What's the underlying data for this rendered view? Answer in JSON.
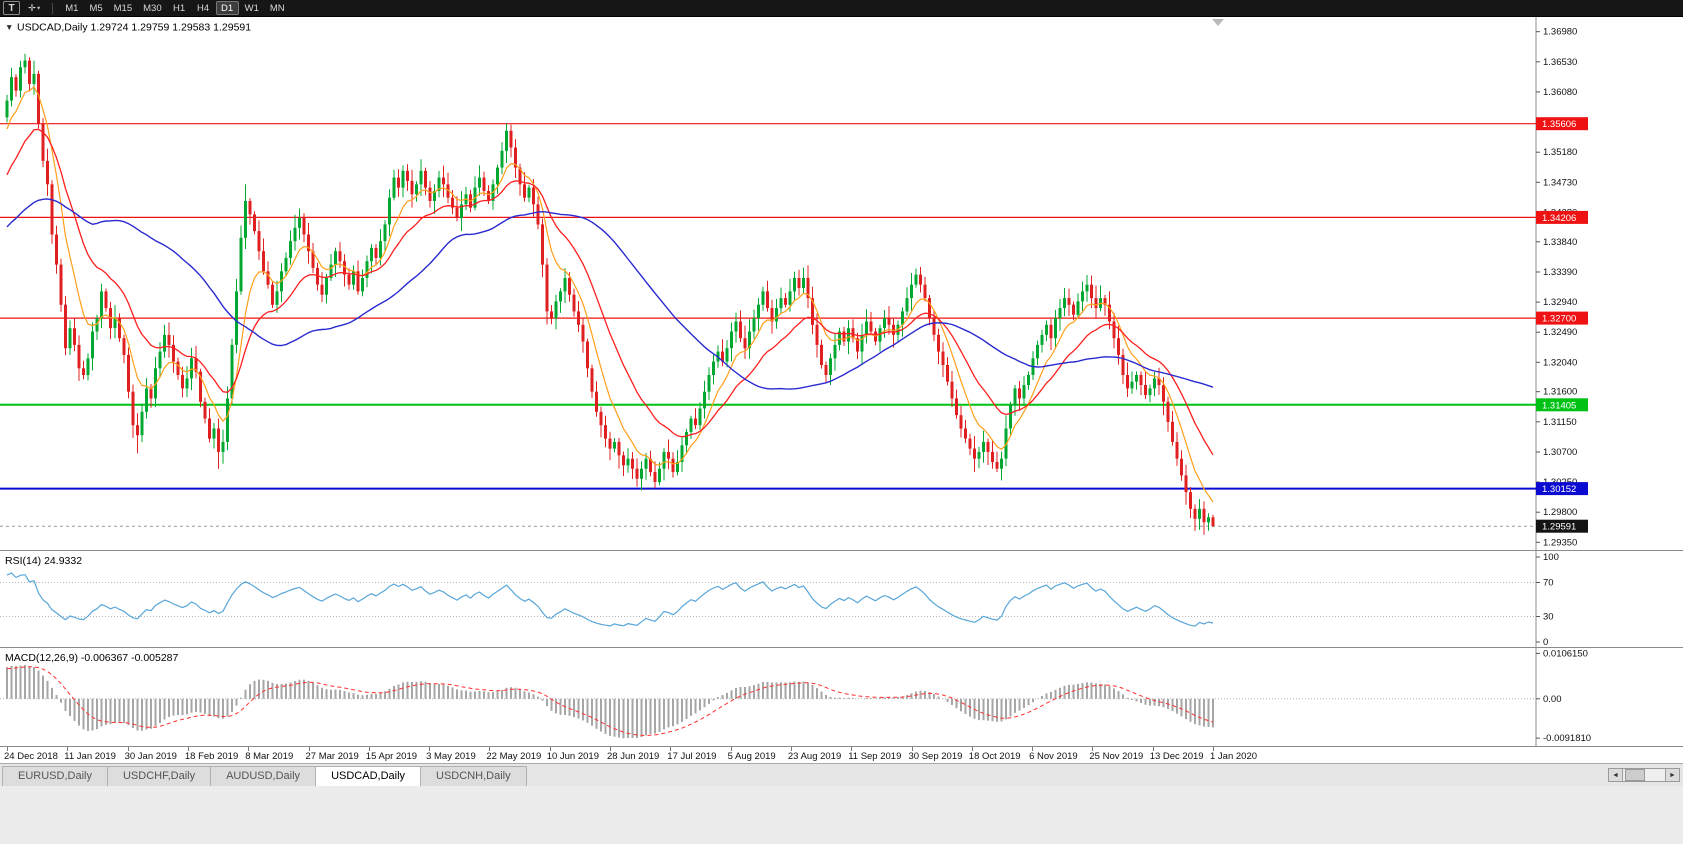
{
  "toolbar": {
    "text_tool_label": "T",
    "crosshair_icon": "✛",
    "dropdown_icon": "▾",
    "timeframes": [
      "M1",
      "M5",
      "M15",
      "M30",
      "H1",
      "H4",
      "D1",
      "W1",
      "MN"
    ],
    "active_timeframe": "D1"
  },
  "main_chart": {
    "collapse_icon": "▼",
    "label": "USDCAD,Daily 1.29724 1.29759 1.29583 1.29591"
  },
  "chart_data": {
    "type": "candlestick",
    "symbol": "USDCAD",
    "timeframe": "Daily",
    "ohlc_display": {
      "open": "1.29724",
      "high": "1.29759",
      "low": "1.29583",
      "close": "1.29591"
    },
    "price_axis": {
      "range": [
        1.2922,
        1.372
      ],
      "ticks": [
        "1.36980",
        "1.36530",
        "1.36080",
        "1.35630",
        "1.35180",
        "1.34730",
        "1.34280",
        "1.33840",
        "1.33390",
        "1.32940",
        "1.32490",
        "1.32040",
        "1.31600",
        "1.31150",
        "1.30700",
        "1.30250",
        "1.29800",
        "1.29350"
      ]
    },
    "date_labels": [
      "24 Dec 2018",
      "11 Jan 2019",
      "30 Jan 2019",
      "18 Feb 2019",
      "8 Mar 2019",
      "27 Mar 2019",
      "15 Apr 2019",
      "3 May 2019",
      "22 May 2019",
      "10 Jun 2019",
      "28 Jun 2019",
      "17 Jul 2019",
      "5 Aug 2019",
      "23 Aug 2019",
      "11 Sep 2019",
      "30 Sep 2019",
      "18 Oct 2019",
      "6 Nov 2019",
      "25 Nov 2019",
      "13 Dec 2019",
      "1 Jan 2020"
    ],
    "levels": [
      {
        "label": "1.35606",
        "value": 1.35606,
        "color": "#ef1212",
        "thickness": 1.2
      },
      {
        "label": "1.34206",
        "value": 1.34206,
        "color": "#ef1212",
        "thickness": 1.2
      },
      {
        "label": "1.32700",
        "value": 1.327,
        "color": "#ef1212",
        "thickness": 1.2
      },
      {
        "label": "1.31405",
        "value": 1.31405,
        "color": "#00c214",
        "thickness": 2
      },
      {
        "label": "1.30152",
        "value": 1.30152,
        "color": "#0a0ad0",
        "thickness": 2
      }
    ],
    "current_price": {
      "label": "1.29591",
      "value": 1.29591,
      "badge_color": "#141414"
    },
    "moving_averages": [
      {
        "type": "ema",
        "period": 8,
        "color": "#ff9f1a",
        "width": 1.2
      },
      {
        "type": "ema",
        "period": 20,
        "color": "#ff1f1f",
        "width": 1.3
      },
      {
        "type": "sma",
        "period": 50,
        "color": "#2a2ad0",
        "width": 1.4
      }
    ],
    "pre_closes": [
      1.3205,
      1.319,
      1.322,
      1.325,
      1.3235,
      1.326,
      1.329,
      1.331,
      1.3295,
      1.333,
      1.336,
      1.3345,
      1.338,
      1.3405,
      1.339,
      1.342,
      1.3445,
      1.343,
      1.346,
      1.348,
      1.3465,
      1.3495,
      1.3515,
      1.35,
      1.353,
      1.355,
      1.3535,
      1.356,
      1.358,
      1.357
    ],
    "closes": [
      1.3595,
      1.363,
      1.361,
      1.3645,
      1.3655,
      1.362,
      1.3635,
      1.356,
      1.3505,
      1.347,
      1.3395,
      1.335,
      1.329,
      1.3225,
      1.3255,
      1.323,
      1.3195,
      1.3185,
      1.321,
      1.325,
      1.327,
      1.331,
      1.3285,
      1.3255,
      1.327,
      1.324,
      1.3215,
      1.316,
      1.311,
      1.3095,
      1.313,
      1.3165,
      1.315,
      1.3195,
      1.322,
      1.3245,
      1.323,
      1.3205,
      1.3185,
      1.3165,
      1.318,
      1.321,
      1.319,
      1.3145,
      1.312,
      1.309,
      1.3105,
      1.307,
      1.3085,
      1.315,
      1.323,
      1.331,
      1.339,
      1.3445,
      1.3425,
      1.34,
      1.337,
      1.334,
      1.332,
      1.329,
      1.331,
      1.334,
      1.336,
      1.3385,
      1.3405,
      1.342,
      1.3395,
      1.337,
      1.3345,
      1.332,
      1.3305,
      1.333,
      1.335,
      1.337,
      1.3355,
      1.3335,
      1.332,
      1.334,
      1.331,
      1.333,
      1.3355,
      1.3375,
      1.336,
      1.3385,
      1.341,
      1.345,
      1.348,
      1.3465,
      1.349,
      1.3475,
      1.3455,
      1.347,
      1.349,
      1.3465,
      1.3445,
      1.346,
      1.348,
      1.347,
      1.345,
      1.3435,
      1.342,
      1.344,
      1.3455,
      1.3435,
      1.3465,
      1.348,
      1.346,
      1.3445,
      1.347,
      1.3495,
      1.352,
      1.355,
      1.3525,
      1.3495,
      1.347,
      1.345,
      1.3465,
      1.344,
      1.341,
      1.335,
      1.328,
      1.327,
      1.3295,
      1.331,
      1.333,
      1.3305,
      1.328,
      1.326,
      1.3235,
      1.3195,
      1.316,
      1.313,
      1.311,
      1.309,
      1.3075,
      1.3085,
      1.3065,
      1.305,
      1.306,
      1.3045,
      1.303,
      1.3045,
      1.306,
      1.304,
      1.3025,
      1.3045,
      1.307,
      1.306,
      1.304,
      1.3055,
      1.308,
      1.31,
      1.312,
      1.311,
      1.3135,
      1.316,
      1.3185,
      1.3205,
      1.322,
      1.3205,
      1.3225,
      1.325,
      1.3265,
      1.324,
      1.3225,
      1.325,
      1.327,
      1.329,
      1.331,
      1.3285,
      1.3265,
      1.3285,
      1.33,
      1.329,
      1.331,
      1.333,
      1.3315,
      1.333,
      1.33,
      1.326,
      1.323,
      1.32,
      1.3185,
      1.321,
      1.323,
      1.325,
      1.3235,
      1.3255,
      1.324,
      1.322,
      1.3245,
      1.3265,
      1.325,
      1.3235,
      1.3255,
      1.327,
      1.326,
      1.3245,
      1.326,
      1.328,
      1.33,
      1.332,
      1.3335,
      1.332,
      1.33,
      1.327,
      1.3245,
      1.322,
      1.32,
      1.3175,
      1.315,
      1.3125,
      1.3105,
      1.309,
      1.3075,
      1.306,
      1.307,
      1.3085,
      1.307,
      1.3055,
      1.3045,
      1.306,
      1.3105,
      1.314,
      1.3165,
      1.315,
      1.317,
      1.3185,
      1.321,
      1.323,
      1.3245,
      1.326,
      1.324,
      1.327,
      1.3285,
      1.33,
      1.329,
      1.3275,
      1.3295,
      1.331,
      1.332,
      1.33,
      1.3285,
      1.33,
      1.329,
      1.3265,
      1.324,
      1.3215,
      1.3185,
      1.3165,
      1.3175,
      1.3185,
      1.317,
      1.3155,
      1.3165,
      1.318,
      1.317,
      1.3145,
      1.3115,
      1.3085,
      1.306,
      1.3035,
      1.301,
      1.2985,
      1.297,
      1.2985,
      1.2965,
      1.29724,
      1.29591
    ],
    "wick_overrides": [
      {
        "i": 4,
        "h": 1.3665
      },
      {
        "i": 29,
        "l": 1.3068
      },
      {
        "i": 47,
        "l": 1.3045
      },
      {
        "i": 53,
        "h": 1.347
      },
      {
        "i": 111,
        "h": 1.3561
      },
      {
        "i": 140,
        "l": 1.3018
      },
      {
        "i": 144,
        "l": 1.3016
      },
      {
        "i": 220,
        "l": 1.304
      },
      {
        "i": 264,
        "l": 1.2952
      },
      {
        "i": 268,
        "h": 1.29759,
        "l": 1.29583
      }
    ],
    "rsi": {
      "label": "RSI(14) 24.9332",
      "period": 14,
      "color": "#58a6d8",
      "guide_levels": [
        70,
        30
      ],
      "axis_ticks": [
        {
          "label": "100",
          "value": 100
        },
        {
          "label": "70",
          "value": 70
        },
        {
          "label": "30",
          "value": 30
        },
        {
          "label": "0",
          "value": 0
        }
      ]
    },
    "macd": {
      "label": "MACD(12,26,9) -0.006367 -0.005287",
      "fast": 12,
      "slow": 26,
      "signal": 9,
      "hist_color": "#a6a6a6",
      "signal_color": "#ff2f2f",
      "range": [
        0.0107,
        -0.0094
      ],
      "axis_ticks": [
        {
          "label": "0.0106150",
          "value": 0.010615
        },
        {
          "label": "0.00",
          "value": 0
        },
        {
          "label": "-0.0091810",
          "value": -0.009181
        }
      ]
    }
  },
  "tabs": {
    "items": [
      {
        "label": "EURUSD,Daily",
        "active": false
      },
      {
        "label": "USDCHF,Daily",
        "active": false
      },
      {
        "label": "AUDUSD,Daily",
        "active": false
      },
      {
        "label": "USDCAD,Daily",
        "active": true
      },
      {
        "label": "USDCNH,Daily",
        "active": false
      }
    ]
  },
  "scrollbar": {
    "left_icon": "◄",
    "right_icon": "►"
  },
  "colors": {
    "background": "#ffffff",
    "up_candle": "#00a832",
    "down_candle": "#e02020",
    "panel_border": "#8c8c8c",
    "axis_text": "#111111"
  }
}
